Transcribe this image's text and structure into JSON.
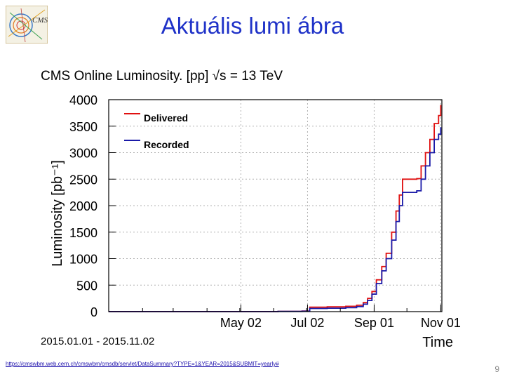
{
  "slide": {
    "title": "Aktuális lumi ábra",
    "logo_text": "CMS",
    "footer_link": "https://cmswbm.web.cern.ch/cmswbm/cmsdb/servlet/DataSummary?TYPE=1&YEAR=2015&SUBMIT=yearly#",
    "page_number": "9"
  },
  "chart_data": {
    "type": "line",
    "title": "CMS Online Luminosity.  [pp]  √s = 13 TeV",
    "xlabel": "Time",
    "ylabel": "Luminosity [pb⁻¹]",
    "date_range": "2015.01.01 - 2015.11.02",
    "x_ticks": [
      {
        "date": "2015-05-02",
        "label": "May 02"
      },
      {
        "date": "2015-07-02",
        "label": "Jul 02"
      },
      {
        "date": "2015-09-01",
        "label": "Sep 01"
      },
      {
        "date": "2015-11-01",
        "label": "Nov 01"
      }
    ],
    "xlim": [
      "2015-01-01",
      "2015-11-02"
    ],
    "ylim": [
      0,
      4000
    ],
    "y_ticks": [
      0,
      500,
      1000,
      1500,
      2000,
      2500,
      3000,
      3500,
      4000
    ],
    "grid": true,
    "legend_position": "top-left",
    "series": [
      {
        "name": "Delivered",
        "color": "#e01010",
        "points": [
          [
            "2015-01-01",
            0
          ],
          [
            "2015-06-03",
            0
          ],
          [
            "2015-06-05",
            5
          ],
          [
            "2015-06-27",
            10
          ],
          [
            "2015-07-04",
            85
          ],
          [
            "2015-07-20",
            90
          ],
          [
            "2015-08-06",
            100
          ],
          [
            "2015-08-16",
            120
          ],
          [
            "2015-08-22",
            170
          ],
          [
            "2015-08-26",
            250
          ],
          [
            "2015-08-30",
            380
          ],
          [
            "2015-09-03",
            600
          ],
          [
            "2015-09-08",
            850
          ],
          [
            "2015-09-12",
            1100
          ],
          [
            "2015-09-17",
            1500
          ],
          [
            "2015-09-21",
            1900
          ],
          [
            "2015-09-24",
            2200
          ],
          [
            "2015-09-27",
            2500
          ],
          [
            "2015-10-10",
            2510
          ],
          [
            "2015-10-14",
            2750
          ],
          [
            "2015-10-18",
            3000
          ],
          [
            "2015-10-22",
            3250
          ],
          [
            "2015-10-26",
            3550
          ],
          [
            "2015-10-30",
            3700
          ],
          [
            "2015-11-01",
            3900
          ]
        ]
      },
      {
        "name": "Recorded",
        "color": "#1a1aa8",
        "points": [
          [
            "2015-01-01",
            0
          ],
          [
            "2015-06-03",
            0
          ],
          [
            "2015-06-05",
            4
          ],
          [
            "2015-06-27",
            8
          ],
          [
            "2015-07-04",
            60
          ],
          [
            "2015-07-20",
            65
          ],
          [
            "2015-08-06",
            75
          ],
          [
            "2015-08-16",
            95
          ],
          [
            "2015-08-22",
            140
          ],
          [
            "2015-08-26",
            210
          ],
          [
            "2015-08-30",
            330
          ],
          [
            "2015-09-03",
            530
          ],
          [
            "2015-09-08",
            770
          ],
          [
            "2015-09-12",
            1000
          ],
          [
            "2015-09-17",
            1350
          ],
          [
            "2015-09-21",
            1700
          ],
          [
            "2015-09-24",
            2000
          ],
          [
            "2015-09-27",
            2250
          ],
          [
            "2015-10-10",
            2280
          ],
          [
            "2015-10-14",
            2500
          ],
          [
            "2015-10-18",
            2750
          ],
          [
            "2015-10-22",
            3000
          ],
          [
            "2015-10-26",
            3250
          ],
          [
            "2015-10-30",
            3350
          ],
          [
            "2015-11-01",
            3480
          ]
        ]
      }
    ]
  }
}
